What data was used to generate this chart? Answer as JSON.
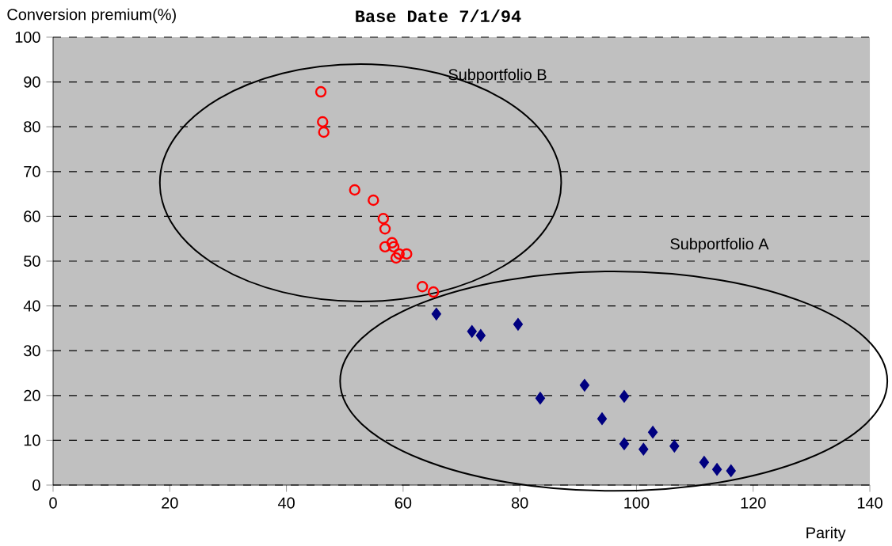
{
  "chart_data": {
    "type": "scatter",
    "title": "Base Date 7/1/94",
    "xlabel": "Parity",
    "ylabel": "Conversion premium(%)",
    "series": [
      {
        "color": "#ff0000",
        "marker": "circle",
        "x": [
          45.9,
          46.2,
          46.4,
          51.7,
          54.9,
          56.6,
          56.9,
          56.9,
          58.1,
          58.4,
          59.3,
          58.8,
          60.6,
          63.3,
          65.2
        ],
        "values": [
          87.8,
          81.1,
          78.8,
          65.9,
          63.6,
          59.5,
          57.2,
          53.2,
          54.1,
          53.2,
          51.6,
          50.7,
          51.6,
          44.3,
          43.1
        ]
      },
      {
        "color": "#000080",
        "marker": "diamond",
        "x": [
          65.7,
          71.8,
          73.3,
          79.7,
          83.5,
          91.1,
          97.9,
          94.1,
          97.9,
          101.2,
          102.8,
          106.5,
          111.6,
          113.8,
          116.2
        ],
        "values": [
          38.2,
          34.3,
          33.4,
          35.9,
          19.4,
          22.3,
          19.8,
          14.8,
          9.2,
          8.0,
          11.8,
          8.7,
          5.1,
          3.5,
          3.2
        ]
      }
    ],
    "xlim": [
      0,
      140
    ],
    "ylim": [
      0,
      100
    ],
    "xticks": [
      0,
      20,
      40,
      60,
      80,
      100,
      120,
      140
    ],
    "yticks": [
      0,
      10,
      20,
      30,
      40,
      50,
      60,
      70,
      80,
      90,
      100
    ],
    "grid": "y",
    "annotations": [
      "Subportfolio B",
      "Subportfolio A"
    ]
  }
}
